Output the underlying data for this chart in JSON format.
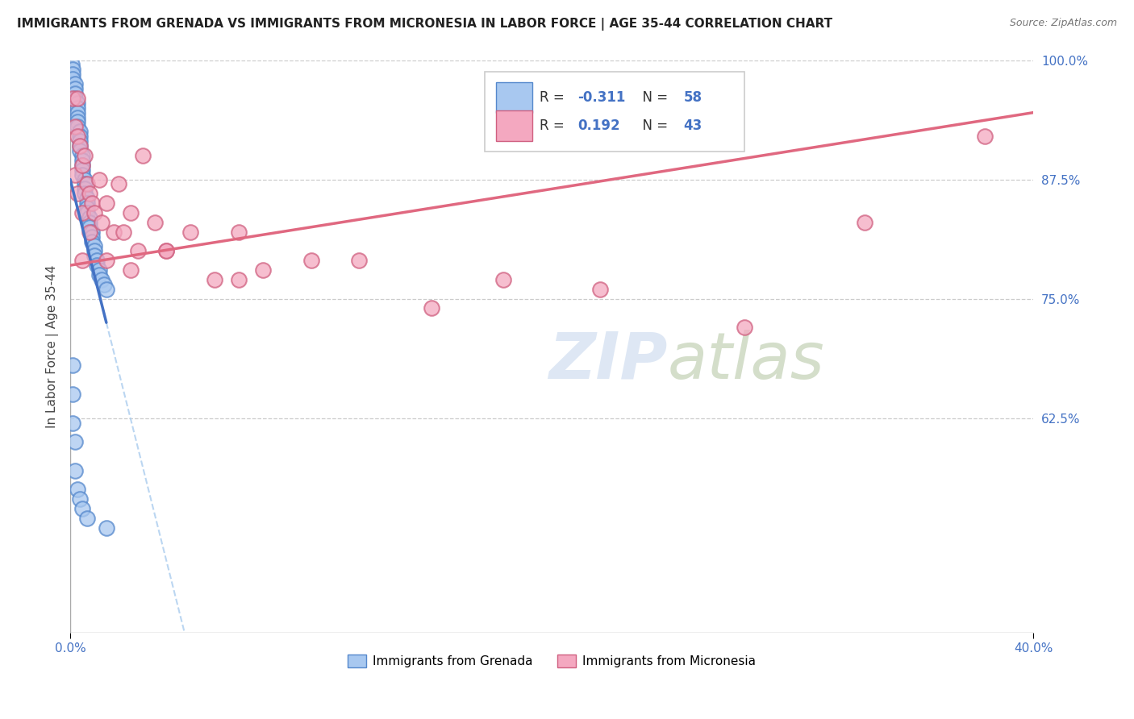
{
  "title": "IMMIGRANTS FROM GRENADA VS IMMIGRANTS FROM MICRONESIA IN LABOR FORCE | AGE 35-44 CORRELATION CHART",
  "source": "Source: ZipAtlas.com",
  "ylabel_label": "In Labor Force | Age 35-44",
  "legend_label1": "Immigrants from Grenada",
  "legend_label2": "Immigrants from Micronesia",
  "R1": -0.311,
  "N1": 58,
  "R2": 0.192,
  "N2": 43,
  "color_blue": "#A8C8F0",
  "color_pink": "#F4A8C0",
  "color_blue_edge": "#5588CC",
  "color_pink_edge": "#D06080",
  "color_line_blue": "#4472C4",
  "color_line_pink": "#E06880",
  "color_line_dashed": "#AACCEE",
  "background_color": "#FFFFFF",
  "xmin": 0.0,
  "xmax": 0.4,
  "ymin": 0.4,
  "ymax": 1.0,
  "yticks": [
    0.625,
    0.75,
    0.875,
    1.0
  ],
  "ytick_labels": [
    "62.5%",
    "75.0%",
    "87.5%",
    "100.0%"
  ],
  "grenada_x": [
    0.0005,
    0.001,
    0.001,
    0.001,
    0.002,
    0.002,
    0.002,
    0.002,
    0.003,
    0.003,
    0.003,
    0.003,
    0.003,
    0.003,
    0.004,
    0.004,
    0.004,
    0.004,
    0.004,
    0.005,
    0.005,
    0.005,
    0.005,
    0.005,
    0.006,
    0.006,
    0.006,
    0.006,
    0.007,
    0.007,
    0.007,
    0.007,
    0.008,
    0.008,
    0.008,
    0.009,
    0.009,
    0.009,
    0.01,
    0.01,
    0.01,
    0.011,
    0.011,
    0.012,
    0.012,
    0.013,
    0.014,
    0.015,
    0.001,
    0.001,
    0.001,
    0.002,
    0.002,
    0.003,
    0.004,
    0.005,
    0.007,
    0.015
  ],
  "grenada_y": [
    0.995,
    0.99,
    0.985,
    0.98,
    0.975,
    0.97,
    0.965,
    0.96,
    0.955,
    0.95,
    0.945,
    0.94,
    0.935,
    0.93,
    0.925,
    0.92,
    0.915,
    0.91,
    0.905,
    0.9,
    0.895,
    0.89,
    0.885,
    0.88,
    0.875,
    0.87,
    0.865,
    0.86,
    0.855,
    0.85,
    0.845,
    0.84,
    0.835,
    0.83,
    0.825,
    0.82,
    0.815,
    0.81,
    0.805,
    0.8,
    0.795,
    0.79,
    0.785,
    0.78,
    0.775,
    0.77,
    0.765,
    0.76,
    0.68,
    0.65,
    0.62,
    0.6,
    0.57,
    0.55,
    0.54,
    0.53,
    0.52,
    0.51
  ],
  "micronesia_x": [
    0.001,
    0.002,
    0.002,
    0.003,
    0.003,
    0.004,
    0.005,
    0.005,
    0.006,
    0.007,
    0.008,
    0.009,
    0.01,
    0.012,
    0.013,
    0.015,
    0.018,
    0.02,
    0.022,
    0.025,
    0.028,
    0.03,
    0.035,
    0.04,
    0.05,
    0.06,
    0.07,
    0.08,
    0.1,
    0.12,
    0.15,
    0.18,
    0.22,
    0.28,
    0.33,
    0.38,
    0.003,
    0.005,
    0.008,
    0.015,
    0.025,
    0.04,
    0.07
  ],
  "micronesia_y": [
    0.96,
    0.93,
    0.88,
    0.92,
    0.86,
    0.91,
    0.89,
    0.84,
    0.9,
    0.87,
    0.86,
    0.85,
    0.84,
    0.875,
    0.83,
    0.85,
    0.82,
    0.87,
    0.82,
    0.84,
    0.8,
    0.9,
    0.83,
    0.8,
    0.82,
    0.77,
    0.82,
    0.78,
    0.79,
    0.79,
    0.74,
    0.77,
    0.76,
    0.72,
    0.83,
    0.92,
    0.96,
    0.79,
    0.82,
    0.79,
    0.78,
    0.8,
    0.77
  ],
  "blue_line_x0": 0.0,
  "blue_line_y0": 0.875,
  "blue_line_x1": 0.015,
  "blue_line_y1": 0.725,
  "pink_line_x0": 0.0,
  "pink_line_y0": 0.785,
  "pink_line_x1": 0.4,
  "pink_line_y1": 0.945
}
